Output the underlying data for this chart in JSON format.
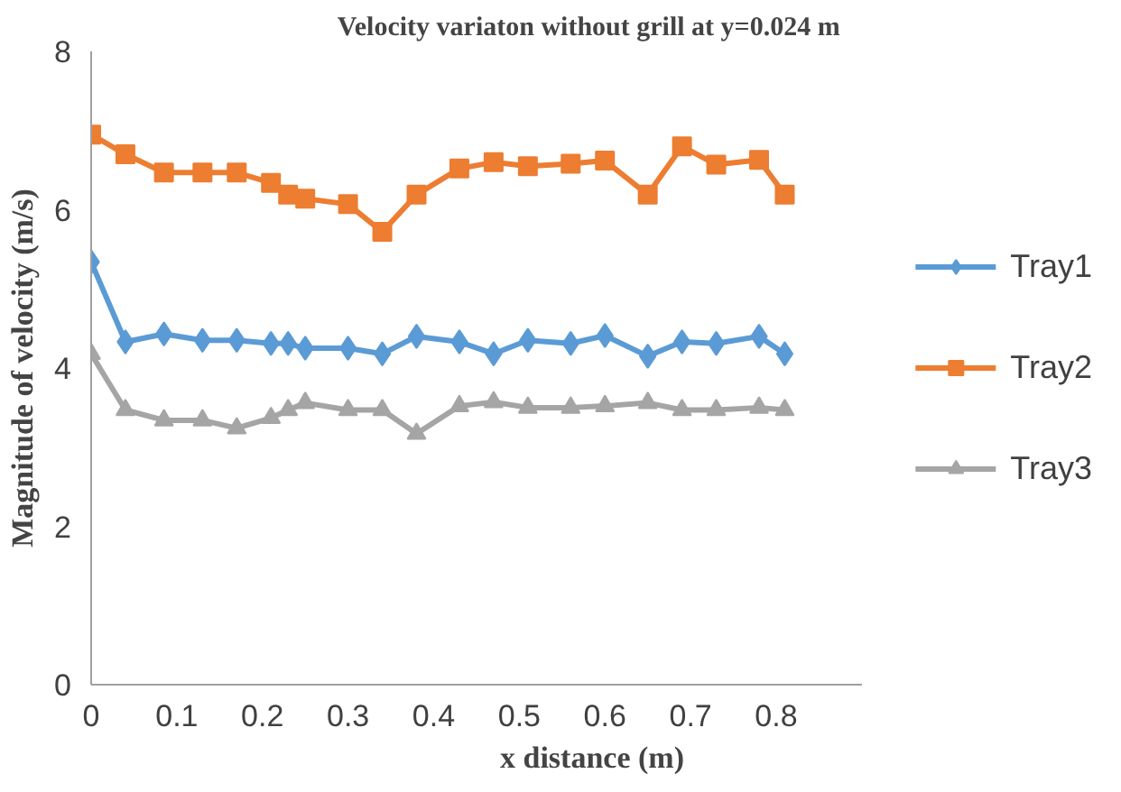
{
  "chart_data": {
    "type": "line",
    "title": "Velocity variaton without grill  at y=0.024 m",
    "xlabel": "x distance (m)",
    "ylabel": "Magnitude of velocity (m/s)",
    "x": [
      0,
      0.04,
      0.085,
      0.13,
      0.17,
      0.21,
      0.23,
      0.25,
      0.3,
      0.34,
      0.38,
      0.43,
      0.47,
      0.51,
      0.56,
      0.6,
      0.65,
      0.69,
      0.73,
      0.78,
      0.81
    ],
    "series": [
      {
        "name": "Tray1",
        "color": "#5b9bd5",
        "marker": "diamond",
        "values": [
          5.34,
          4.33,
          4.43,
          4.35,
          4.35,
          4.31,
          4.31,
          4.25,
          4.25,
          4.18,
          4.4,
          4.33,
          4.18,
          4.35,
          4.31,
          4.41,
          4.15,
          4.33,
          4.31,
          4.4,
          4.18
        ]
      },
      {
        "name": "Tray2",
        "color": "#ed7d31",
        "marker": "square",
        "values": [
          6.95,
          6.7,
          6.47,
          6.47,
          6.47,
          6.34,
          6.19,
          6.14,
          6.07,
          5.72,
          6.19,
          6.52,
          6.6,
          6.55,
          6.58,
          6.62,
          6.19,
          6.8,
          6.57,
          6.63,
          6.19
        ]
      },
      {
        "name": "Tray3",
        "color": "#a5a5a5",
        "marker": "triangle",
        "values": [
          4.18,
          3.47,
          3.34,
          3.34,
          3.24,
          3.37,
          3.47,
          3.56,
          3.47,
          3.47,
          3.17,
          3.52,
          3.57,
          3.5,
          3.5,
          3.52,
          3.56,
          3.47,
          3.47,
          3.5,
          3.47
        ]
      }
    ],
    "xlim": [
      0,
      0.9
    ],
    "xticks": [
      0,
      0.1,
      0.2,
      0.3,
      0.4,
      0.5,
      0.6,
      0.7,
      0.8
    ],
    "ylim": [
      0,
      8
    ],
    "yticks": [
      0,
      2,
      4,
      6,
      8
    ],
    "grid": false,
    "legend": "right",
    "line_style": "solid"
  }
}
